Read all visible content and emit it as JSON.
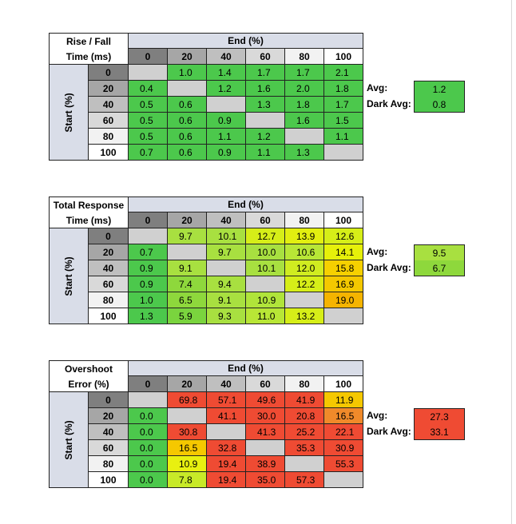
{
  "chart_data": [
    {
      "type": "heatmap",
      "title_lines": [
        "Rise / Fall",
        "Time (ms)"
      ],
      "column_group_label": "End (%)",
      "row_group_label": "Start (%)",
      "columns": [
        "0",
        "20",
        "40",
        "60",
        "80",
        "100"
      ],
      "rows": [
        "0",
        "20",
        "40",
        "60",
        "80",
        "100"
      ],
      "values": [
        [
          null,
          "1.0",
          "1.4",
          "1.7",
          "1.7",
          "2.1"
        ],
        [
          "0.4",
          null,
          "1.2",
          "1.6",
          "2.0",
          "1.8"
        ],
        [
          "0.5",
          "0.6",
          null,
          "1.3",
          "1.8",
          "1.7"
        ],
        [
          "0.5",
          "0.6",
          "0.9",
          null,
          "1.6",
          "1.5"
        ],
        [
          "0.5",
          "0.6",
          "1.1",
          "1.2",
          null,
          "1.1"
        ],
        [
          "0.7",
          "0.6",
          "0.9",
          "1.1",
          "1.3",
          null
        ]
      ],
      "colors": [
        [
          null,
          "#4cc84c",
          "#4cc84c",
          "#4cc84c",
          "#4cc84c",
          "#4cc84c"
        ],
        [
          "#4cc84c",
          null,
          "#4cc84c",
          "#4cc84c",
          "#4cc84c",
          "#4cc84c"
        ],
        [
          "#4cc84c",
          "#4cc84c",
          null,
          "#4cc84c",
          "#4cc84c",
          "#4cc84c"
        ],
        [
          "#4cc84c",
          "#4cc84c",
          "#4cc84c",
          null,
          "#4cc84c",
          "#4cc84c"
        ],
        [
          "#4cc84c",
          "#4cc84c",
          "#4cc84c",
          "#4cc84c",
          null,
          "#4cc84c"
        ],
        [
          "#4cc84c",
          "#4cc84c",
          "#4cc84c",
          "#4cc84c",
          "#4cc84c",
          null
        ]
      ],
      "stats": [
        {
          "label": "Avg:",
          "value": "1.2",
          "color": "#4cc84c"
        },
        {
          "label": "Dark Avg:",
          "value": "0.8",
          "color": "#4cc84c"
        }
      ]
    },
    {
      "type": "heatmap",
      "title_lines": [
        "Total Response",
        "Time (ms)"
      ],
      "column_group_label": "End (%)",
      "row_group_label": "Start (%)",
      "columns": [
        "0",
        "20",
        "40",
        "60",
        "80",
        "100"
      ],
      "rows": [
        "0",
        "20",
        "40",
        "60",
        "80",
        "100"
      ],
      "values": [
        [
          null,
          "9.7",
          "10.1",
          "12.7",
          "13.9",
          "12.6"
        ],
        [
          "0.7",
          null,
          "9.7",
          "10.0",
          "10.6",
          "14.1"
        ],
        [
          "0.9",
          "9.1",
          null,
          "10.1",
          "12.0",
          "15.8"
        ],
        [
          "0.9",
          "7.4",
          "9.4",
          null,
          "12.2",
          "16.9"
        ],
        [
          "1.0",
          "6.5",
          "9.1",
          "10.9",
          null,
          "19.0"
        ],
        [
          "1.3",
          "5.9",
          "9.3",
          "11.0",
          "13.2",
          null
        ]
      ],
      "colors": [
        [
          null,
          "#a8e040",
          "#a8e040",
          "#d6ee18",
          "#e2ef10",
          "#d6ee18"
        ],
        [
          "#4cc84c",
          null,
          "#a8e040",
          "#a8e040",
          "#b8e636",
          "#e6f00a"
        ],
        [
          "#4cc84c",
          "#a8e040",
          null,
          "#a8e040",
          "#d0ec20",
          "#f6d000"
        ],
        [
          "#4cc84c",
          "#8ed83c",
          "#a8e040",
          null,
          "#d6ee18",
          "#f4c800"
        ],
        [
          "#4cc84c",
          "#8ed83c",
          "#a8e040",
          "#b0e43a",
          null,
          "#f5b400"
        ],
        [
          "#4cc84c",
          "#7ad43e",
          "#a8e040",
          "#b8e636",
          "#d6ee18",
          null
        ]
      ],
      "stats": [
        {
          "label": "Avg:",
          "value": "9.5",
          "color": "#a8e040"
        },
        {
          "label": "Dark Avg:",
          "value": "6.7",
          "color": "#8ed83c"
        }
      ]
    },
    {
      "type": "heatmap",
      "title_lines": [
        "Overshoot",
        "Error (%)"
      ],
      "column_group_label": "End (%)",
      "row_group_label": "Start (%)",
      "columns": [
        "0",
        "20",
        "40",
        "60",
        "80",
        "100"
      ],
      "rows": [
        "0",
        "20",
        "40",
        "60",
        "80",
        "100"
      ],
      "values": [
        [
          null,
          "69.8",
          "57.1",
          "49.6",
          "41.9",
          "11.9"
        ],
        [
          "0.0",
          null,
          "41.1",
          "30.0",
          "20.8",
          "16.5"
        ],
        [
          "0.0",
          "30.8",
          null,
          "41.3",
          "25.2",
          "22.1"
        ],
        [
          "0.0",
          "16.5",
          "32.8",
          null,
          "35.3",
          "30.9"
        ],
        [
          "0.0",
          "10.9",
          "19.4",
          "38.9",
          null,
          "55.3"
        ],
        [
          "0.0",
          "7.8",
          "19.4",
          "35.0",
          "57.3",
          null
        ]
      ],
      "colors": [
        [
          null,
          "#ef4b33",
          "#ef4b33",
          "#ef4b33",
          "#ef4b33",
          "#f5c800"
        ],
        [
          "#4cc84c",
          null,
          "#ef4b33",
          "#ef4b33",
          "#ef4b33",
          "#f08a2a"
        ],
        [
          "#4cc84c",
          "#ef4b33",
          null,
          "#ef4b33",
          "#ef4b33",
          "#ef4b33"
        ],
        [
          "#4cc84c",
          "#f5c800",
          "#ef4b33",
          null,
          "#ef4b33",
          "#ef4b33"
        ],
        [
          "#4cc84c",
          "#e8f010",
          "#ef4b33",
          "#ef4b33",
          null,
          "#ef4b33"
        ],
        [
          "#4cc84c",
          "#c8ea28",
          "#ef4b33",
          "#ef4b33",
          "#ef4b33",
          null
        ]
      ],
      "stats": [
        {
          "label": "Avg:",
          "value": "27.3",
          "color": "#ef4b33"
        },
        {
          "label": "Dark Avg:",
          "value": "33.1",
          "color": "#ef4b33"
        }
      ]
    }
  ],
  "colors": {
    "header_band": "#d9dde8",
    "empty_cell": "#d0d0d0",
    "label_white": "#ffffff",
    "col_header_shades": [
      "#7f7f7f",
      "#a6a6a6",
      "#bfbfbf",
      "#d9d9d9",
      "#f2f2f2",
      "#ffffff"
    ],
    "row_header_shades": [
      "#7f7f7f",
      "#a6a6a6",
      "#bfbfbf",
      "#d9d9d9",
      "#f2f2f2",
      "#ffffff"
    ]
  }
}
